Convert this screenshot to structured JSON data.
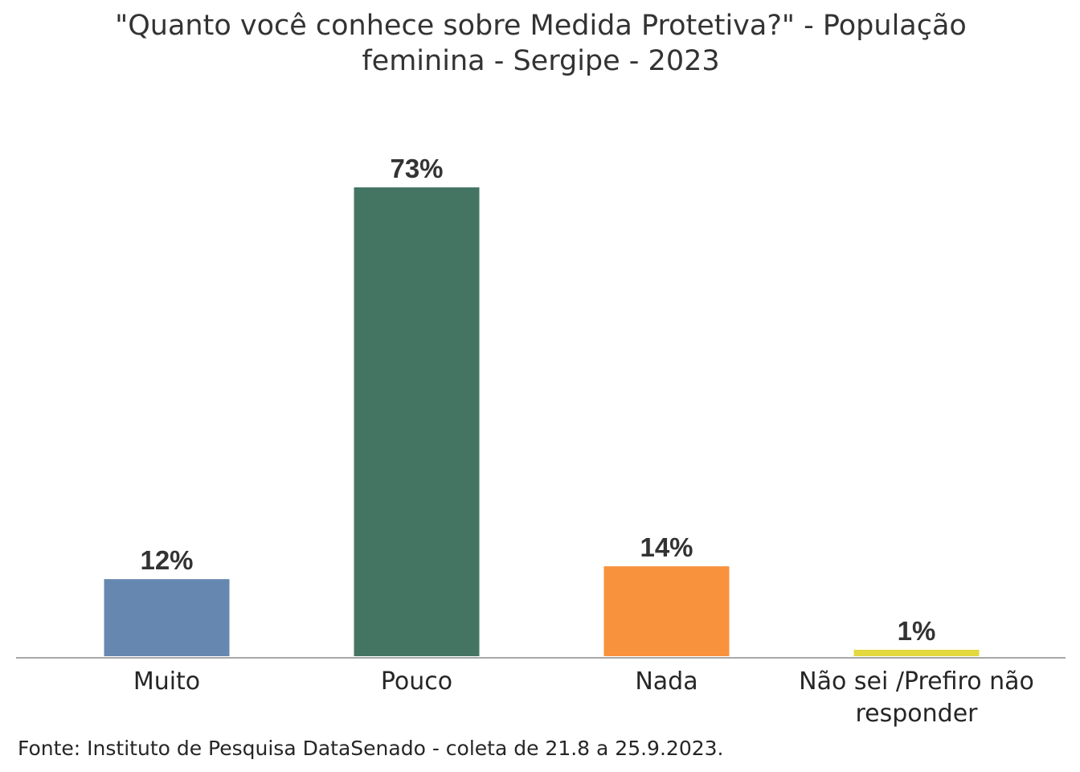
{
  "chart_data": {
    "type": "bar",
    "title_lines": [
      "\"Quanto você conhece sobre Medida Protetiva?\" - População",
      "feminina - Sergipe - 2023"
    ],
    "categories": [
      [
        "Muito"
      ],
      [
        "Pouco"
      ],
      [
        "Nada"
      ],
      [
        "Não sei /Prefiro não",
        "responder"
      ]
    ],
    "values": [
      12,
      73,
      14,
      1
    ],
    "value_labels": [
      "12%",
      "73%",
      "14%",
      "1%"
    ],
    "colors": [
      "#6688B0",
      "#447563",
      "#F9923D",
      "#E3D83E"
    ],
    "ylim": [
      0,
      73
    ],
    "grid": false,
    "legend": "none",
    "xlabel": "",
    "ylabel": "",
    "source": "Fonte: Instituto de Pesquisa DataSenado - coleta de 21.8 a 25.9.2023."
  }
}
